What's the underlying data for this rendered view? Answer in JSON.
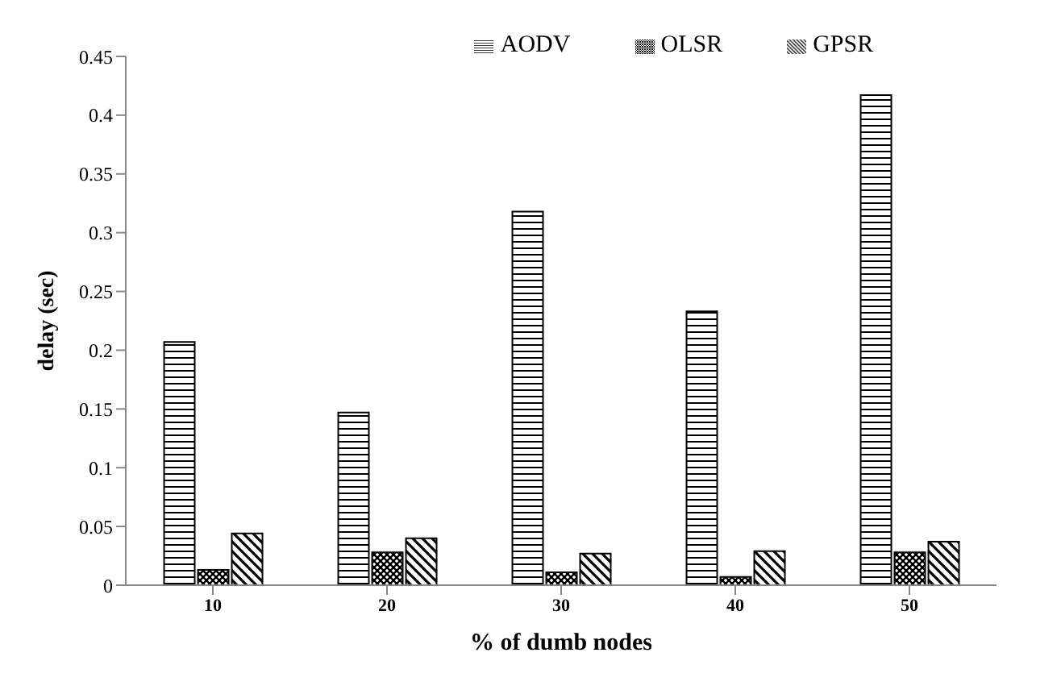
{
  "chart_data": {
    "type": "bar",
    "xlabel": "% of dumb nodes",
    "ylabel": "delay (sec)",
    "categories": [
      "10",
      "20",
      "30",
      "40",
      "50"
    ],
    "series": [
      {
        "name": "AODV",
        "color": "#000000",
        "values": [
          0.207,
          0.147,
          0.318,
          0.233,
          0.417
        ]
      },
      {
        "name": "OLSR",
        "color": "#000000",
        "values": [
          0.013,
          0.028,
          0.011,
          0.007,
          0.028
        ]
      },
      {
        "name": "GPSR",
        "color": "#000000",
        "values": [
          0.044,
          0.04,
          0.027,
          0.029,
          0.037
        ]
      }
    ],
    "ylim": [
      0,
      0.45
    ],
    "yticks": [
      0,
      0.05,
      0.1,
      0.15,
      0.2,
      0.25,
      0.3,
      0.35,
      0.4,
      0.45
    ],
    "grid": false,
    "legend": "top"
  }
}
